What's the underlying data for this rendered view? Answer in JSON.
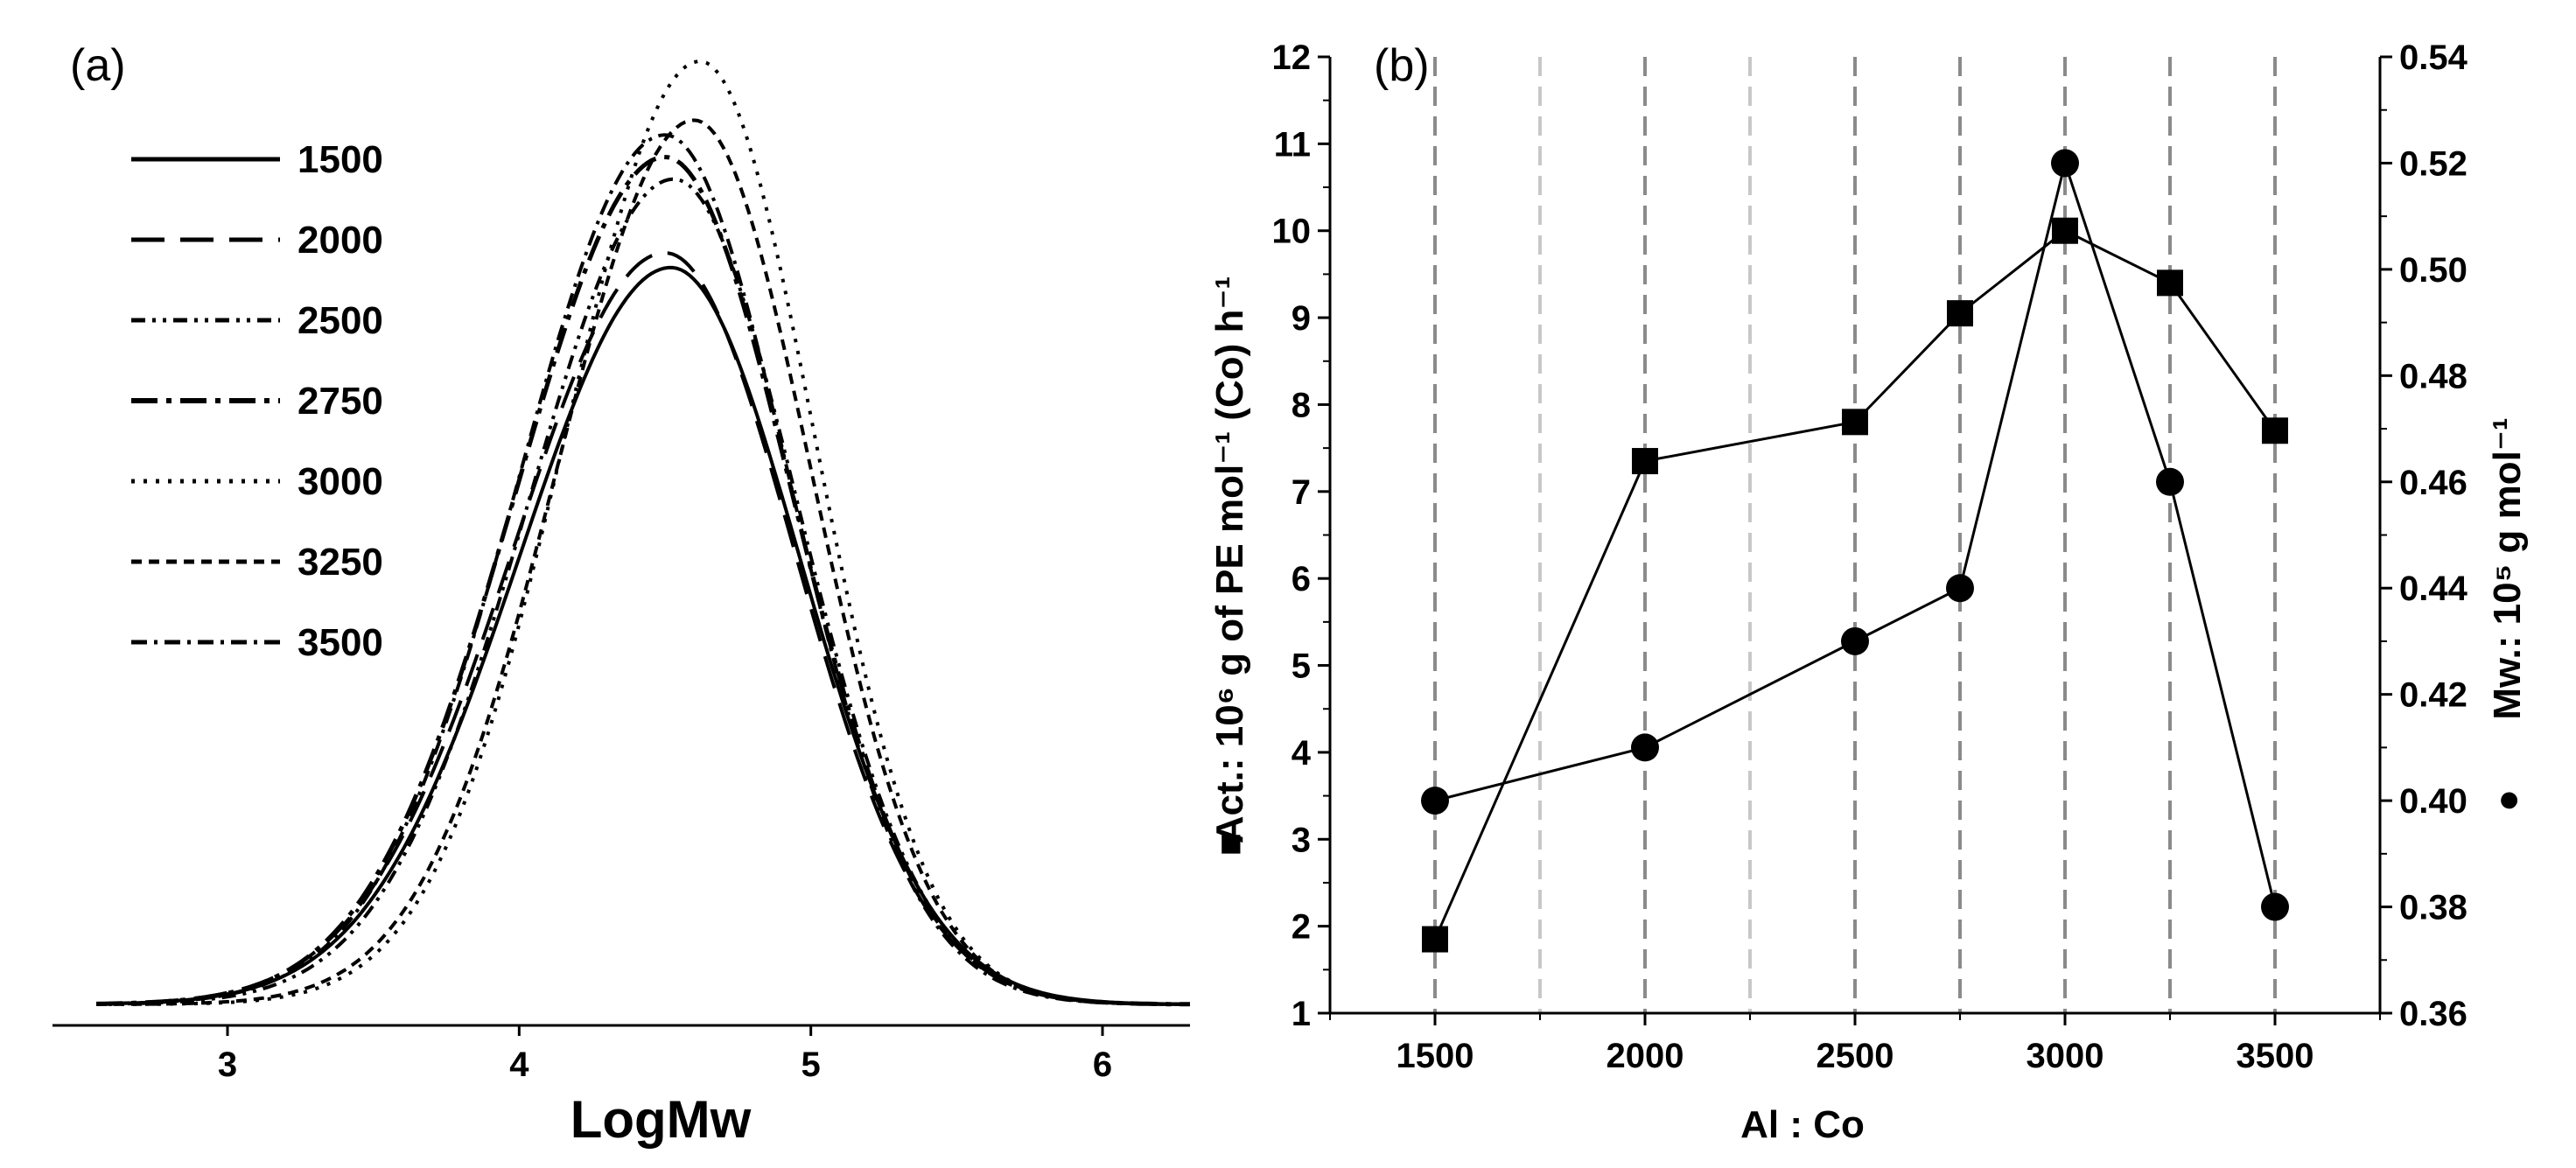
{
  "chart_data": [
    {
      "panel": "(a)",
      "type": "line",
      "xlabel": "LogMw",
      "ylabel": "",
      "xlim": [
        2.4,
        6.3
      ],
      "x_ticks": [
        3,
        4,
        5,
        6
      ],
      "legend_position": "top-left",
      "series": [
        {
          "name": "1500",
          "peak_x": 4.52,
          "peak_height": 1.0,
          "width": 0.52,
          "style": "solid"
        },
        {
          "name": "2000",
          "peak_x": 4.5,
          "peak_height": 1.02,
          "width": 0.52,
          "style": "long-dash"
        },
        {
          "name": "2500",
          "peak_x": 4.53,
          "peak_height": 1.12,
          "width": 0.5,
          "style": "dash-dot-dot"
        },
        {
          "name": "2750",
          "peak_x": 4.5,
          "peak_height": 1.15,
          "width": 0.51,
          "style": "long-dash-dot"
        },
        {
          "name": "3000",
          "peak_x": 4.62,
          "peak_height": 1.28,
          "width": 0.46,
          "style": "dotted"
        },
        {
          "name": "3250",
          "peak_x": 4.6,
          "peak_height": 1.2,
          "width": 0.47,
          "style": "short-dash"
        },
        {
          "name": "3500",
          "peak_x": 4.5,
          "peak_height": 1.18,
          "width": 0.5,
          "style": "dash-dot"
        }
      ]
    },
    {
      "panel": "(b)",
      "type": "line",
      "xlabel": "Al : Co",
      "ylabel_left_symbol": "■",
      "ylabel_left": "Act.: 10⁶ g of PE mol⁻¹ (Co) h⁻¹",
      "ylabel_right_symbol": "●",
      "ylabel_right": "Mw.: 10⁵ g mol⁻¹",
      "x_ticks": [
        1500,
        2000,
        2500,
        3000,
        3500
      ],
      "xlim": [
        1250,
        3750
      ],
      "ylim_left": [
        1,
        12
      ],
      "y_ticks_left": [
        "1",
        "2",
        "3",
        "4",
        "5",
        "6",
        "7",
        "8",
        "9",
        "10",
        "11",
        "12"
      ],
      "ylim_right": [
        0.36,
        0.54
      ],
      "y_ticks_right": [
        "0.36",
        "0.38",
        "0.40",
        "0.42",
        "0.44",
        "0.46",
        "0.48",
        "0.50",
        "0.52",
        "0.54"
      ],
      "vertical_gridlines": [
        1500,
        1750,
        2000,
        2250,
        2500,
        2750,
        3000,
        3250,
        3500
      ],
      "series": [
        {
          "name": "Activity",
          "marker": "square",
          "axis": "left",
          "x": [
            1500,
            2000,
            2500,
            2750,
            3000,
            3250,
            3500
          ],
          "values": [
            1.85,
            7.35,
            7.8,
            9.05,
            10.0,
            9.4,
            7.7
          ]
        },
        {
          "name": "Mw",
          "marker": "circle",
          "axis": "right",
          "x": [
            1500,
            2000,
            2500,
            2750,
            3000,
            3250,
            3500
          ],
          "values": [
            0.4,
            0.41,
            0.43,
            0.44,
            0.52,
            0.46,
            0.38
          ]
        }
      ]
    }
  ]
}
